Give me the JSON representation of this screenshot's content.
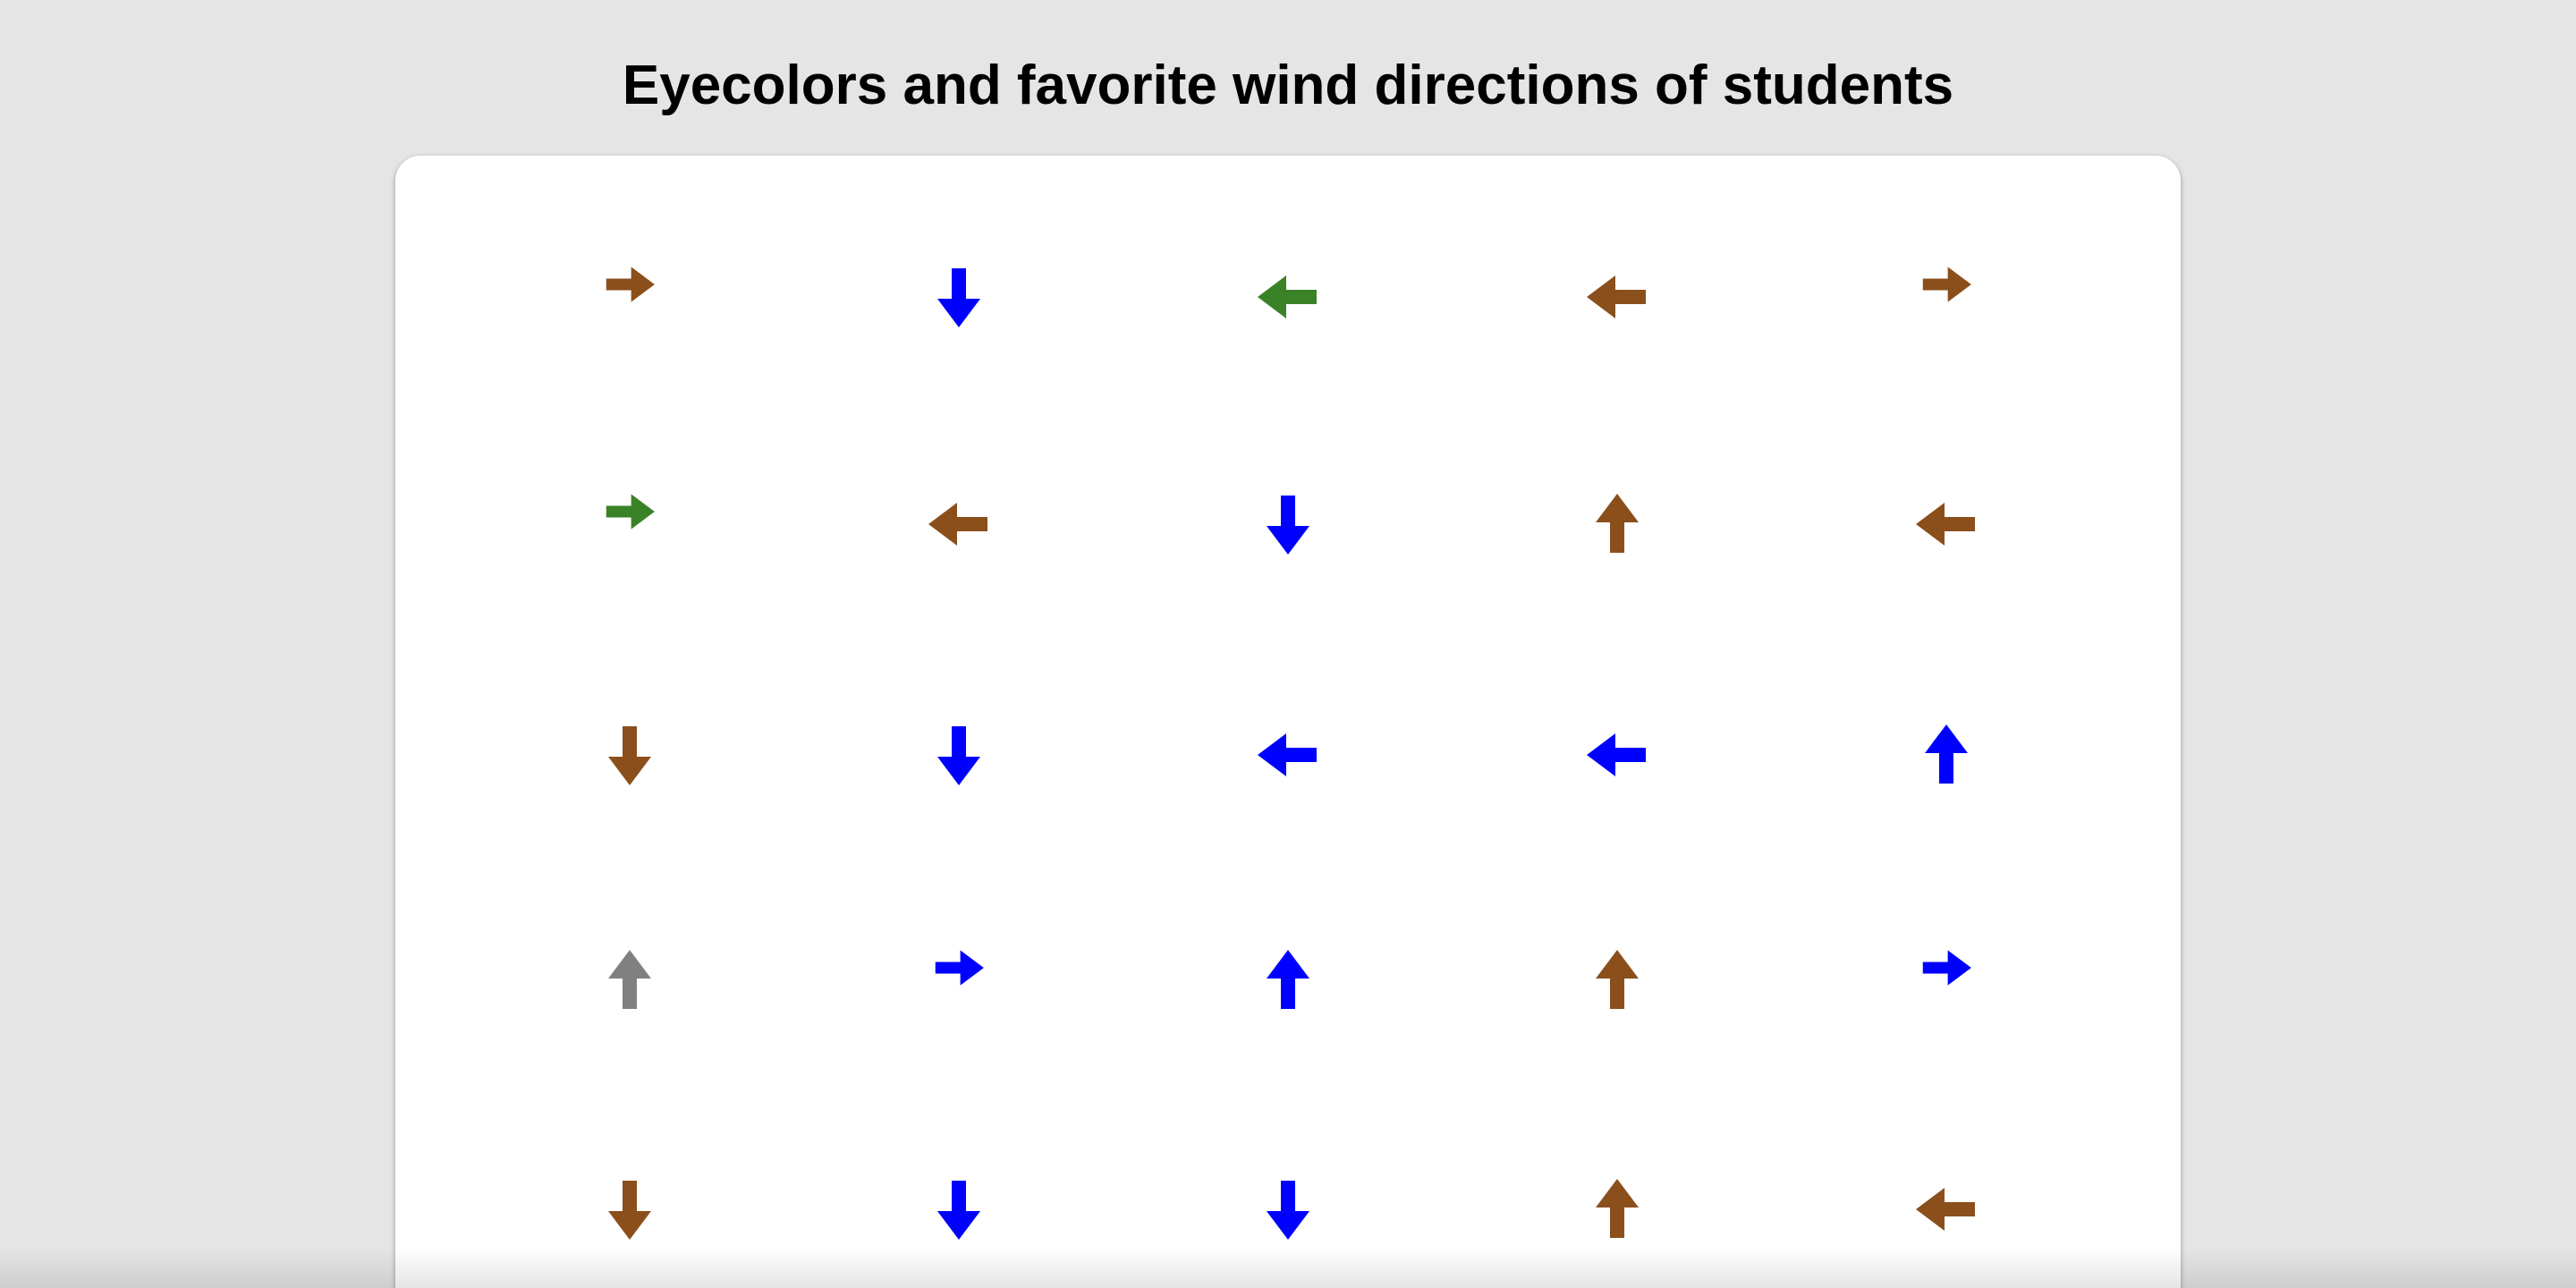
{
  "header": {
    "title": "Eyecolors and favorite wind directions of students"
  },
  "colors": {
    "background": "#e5e5e5",
    "card": "#ffffff",
    "brown": "#8b4f1c",
    "blue": "#0000ff",
    "green": "#3a8227",
    "gray": "#808080"
  },
  "students": [
    {
      "eye_color": "brown",
      "direction": "right"
    },
    {
      "eye_color": "blue",
      "direction": "down"
    },
    {
      "eye_color": "green",
      "direction": "left"
    },
    {
      "eye_color": "brown",
      "direction": "left"
    },
    {
      "eye_color": "brown",
      "direction": "right"
    },
    {
      "eye_color": "green",
      "direction": "right"
    },
    {
      "eye_color": "brown",
      "direction": "left"
    },
    {
      "eye_color": "blue",
      "direction": "down"
    },
    {
      "eye_color": "brown",
      "direction": "up"
    },
    {
      "eye_color": "brown",
      "direction": "left"
    },
    {
      "eye_color": "brown",
      "direction": "down"
    },
    {
      "eye_color": "blue",
      "direction": "down"
    },
    {
      "eye_color": "blue",
      "direction": "left"
    },
    {
      "eye_color": "blue",
      "direction": "left"
    },
    {
      "eye_color": "blue",
      "direction": "up"
    },
    {
      "eye_color": "gray",
      "direction": "up"
    },
    {
      "eye_color": "blue",
      "direction": "right"
    },
    {
      "eye_color": "blue",
      "direction": "up"
    },
    {
      "eye_color": "brown",
      "direction": "up"
    },
    {
      "eye_color": "blue",
      "direction": "right"
    },
    {
      "eye_color": "brown",
      "direction": "down"
    },
    {
      "eye_color": "blue",
      "direction": "down"
    },
    {
      "eye_color": "blue",
      "direction": "down"
    },
    {
      "eye_color": "brown",
      "direction": "up"
    },
    {
      "eye_color": "brown",
      "direction": "left"
    }
  ]
}
